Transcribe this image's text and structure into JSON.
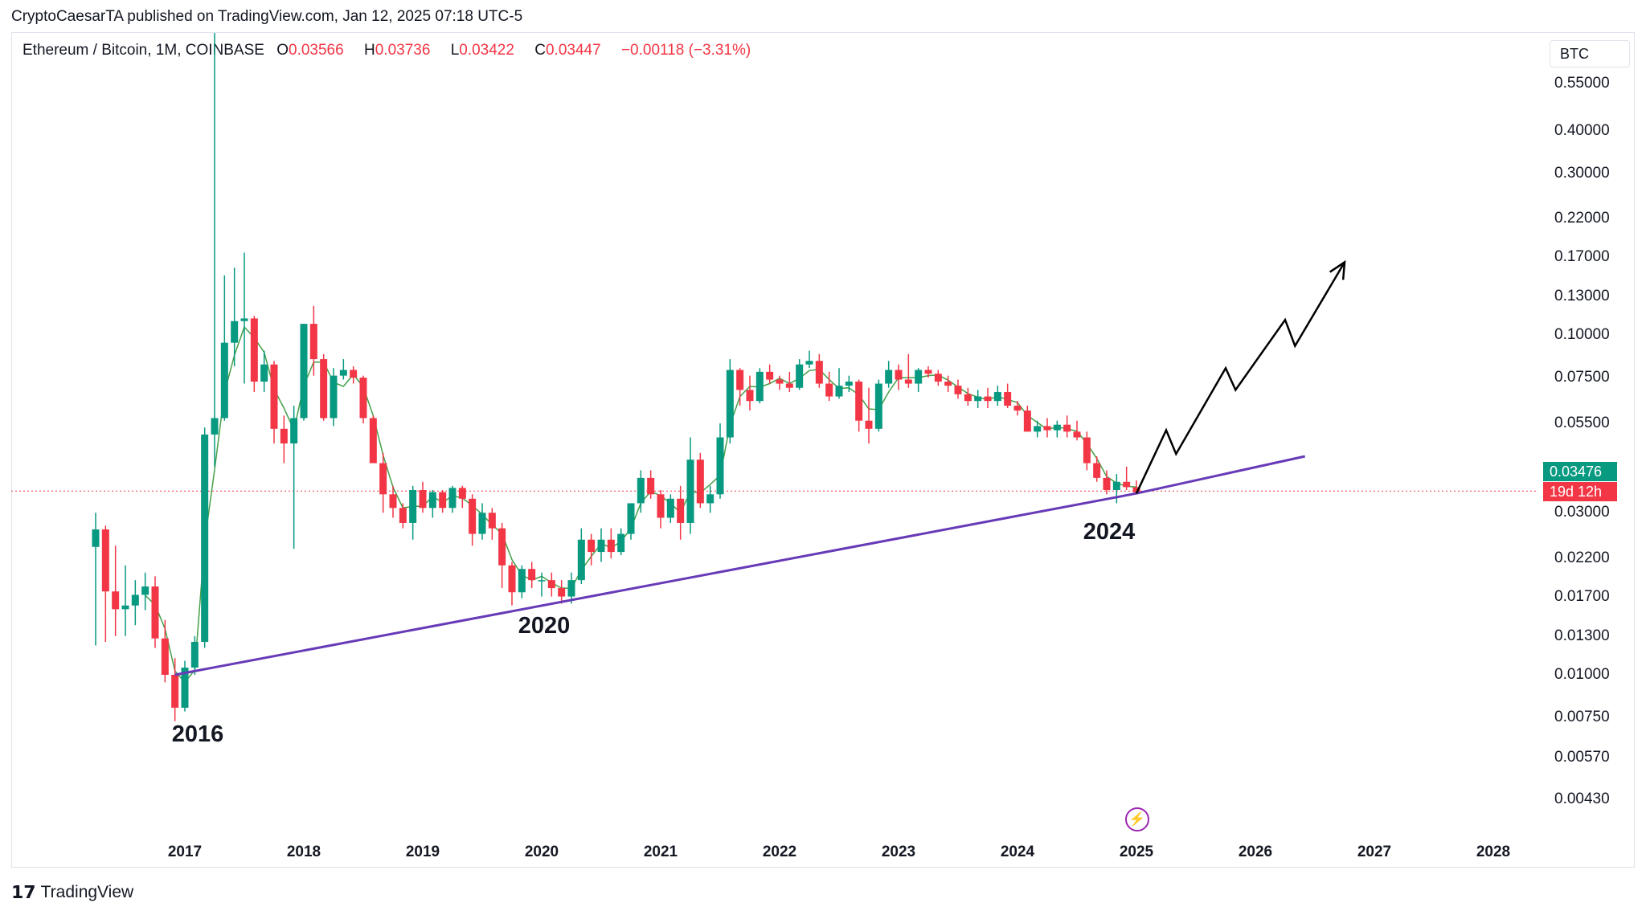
{
  "publisher_line": "CryptoCaesarTA published on TradingView.com, Jan 12, 2025 07:18 UTC-5",
  "legend": {
    "symbol": "Ethereum / Bitcoin, 1M, COINBASE",
    "o_label": "O",
    "o_value": "0.03566",
    "h_label": "H",
    "h_value": "0.03736",
    "l_label": "L",
    "l_value": "0.03422",
    "c_label": "C",
    "c_value": "0.03447",
    "change": "−0.00118 (−3.31%)"
  },
  "currency_button": "BTC",
  "last_price_label": "0.03476",
  "countdown_label": "19d 12h",
  "colors": {
    "up": "#089981",
    "down": "#f23645",
    "trendline": "#673ab7",
    "ma": "#43a047",
    "arrow": "#000000",
    "price_line": "#f23645"
  },
  "brand": "TradingView",
  "icons": {
    "logo": "tradingview-logo-icon",
    "event": "lightning-event-icon"
  },
  "chart_data": {
    "type": "candlestick",
    "scale": "log",
    "interval": "1M",
    "y_ticks": [
      "0.55000",
      "0.40000",
      "0.30000",
      "0.22000",
      "0.17000",
      "0.13000",
      "0.10000",
      "0.07500",
      "0.05500",
      "0.03000",
      "0.02200",
      "0.01700",
      "0.01300",
      "0.01000",
      "0.00750",
      "0.00570",
      "0.00430"
    ],
    "x_ticks": [
      "2017",
      "2018",
      "2019",
      "2020",
      "2021",
      "2022",
      "2023",
      "2024",
      "2025",
      "2026",
      "2027",
      "2028"
    ],
    "annotations": [
      "2016",
      "2020",
      "2024"
    ],
    "last_price": 0.03476,
    "candles": [
      {
        "t": "2016-04",
        "o": 0.0238,
        "h": 0.03,
        "l": 0.0122,
        "c": 0.0268
      },
      {
        "t": "2016-05",
        "o": 0.0268,
        "h": 0.0275,
        "l": 0.0125,
        "c": 0.0176
      },
      {
        "t": "2016-06",
        "o": 0.0176,
        "h": 0.024,
        "l": 0.013,
        "c": 0.0156
      },
      {
        "t": "2016-07",
        "o": 0.0156,
        "h": 0.021,
        "l": 0.013,
        "c": 0.016
      },
      {
        "t": "2016-08",
        "o": 0.016,
        "h": 0.019,
        "l": 0.014,
        "c": 0.0172
      },
      {
        "t": "2016-09",
        "o": 0.0172,
        "h": 0.02,
        "l": 0.0155,
        "c": 0.0182
      },
      {
        "t": "2016-10",
        "o": 0.0182,
        "h": 0.0195,
        "l": 0.012,
        "c": 0.0128
      },
      {
        "t": "2016-11",
        "o": 0.0128,
        "h": 0.0145,
        "l": 0.0095,
        "c": 0.01
      },
      {
        "t": "2016-12",
        "o": 0.01,
        "h": 0.0112,
        "l": 0.0073,
        "c": 0.008
      },
      {
        "t": "2017-01",
        "o": 0.008,
        "h": 0.011,
        "l": 0.0078,
        "c": 0.0105
      },
      {
        "t": "2017-02",
        "o": 0.0105,
        "h": 0.013,
        "l": 0.01,
        "c": 0.0125
      },
      {
        "t": "2017-03",
        "o": 0.0125,
        "h": 0.0535,
        "l": 0.012,
        "c": 0.051
      },
      {
        "t": "2017-04",
        "o": 0.051,
        "h": 1.9,
        "l": 0.041,
        "c": 0.057
      },
      {
        "t": "2017-05",
        "o": 0.057,
        "h": 0.15,
        "l": 0.056,
        "c": 0.095
      },
      {
        "t": "2017-06",
        "o": 0.095,
        "h": 0.158,
        "l": 0.081,
        "c": 0.11
      },
      {
        "t": "2017-07",
        "o": 0.11,
        "h": 0.175,
        "l": 0.072,
        "c": 0.112
      },
      {
        "t": "2017-08",
        "o": 0.112,
        "h": 0.114,
        "l": 0.068,
        "c": 0.073
      },
      {
        "t": "2017-09",
        "o": 0.073,
        "h": 0.09,
        "l": 0.068,
        "c": 0.082
      },
      {
        "t": "2017-10",
        "o": 0.082,
        "h": 0.084,
        "l": 0.048,
        "c": 0.053
      },
      {
        "t": "2017-11",
        "o": 0.053,
        "h": 0.058,
        "l": 0.042,
        "c": 0.048
      },
      {
        "t": "2017-12",
        "o": 0.048,
        "h": 0.062,
        "l": 0.0235,
        "c": 0.057
      },
      {
        "t": "2018-01",
        "o": 0.057,
        "h": 0.108,
        "l": 0.056,
        "c": 0.108
      },
      {
        "t": "2018-02",
        "o": 0.108,
        "h": 0.122,
        "l": 0.076,
        "c": 0.085
      },
      {
        "t": "2018-03",
        "o": 0.085,
        "h": 0.088,
        "l": 0.056,
        "c": 0.057
      },
      {
        "t": "2018-04",
        "o": 0.057,
        "h": 0.08,
        "l": 0.054,
        "c": 0.076
      },
      {
        "t": "2018-05",
        "o": 0.076,
        "h": 0.085,
        "l": 0.074,
        "c": 0.079
      },
      {
        "t": "2018-06",
        "o": 0.079,
        "h": 0.081,
        "l": 0.072,
        "c": 0.075
      },
      {
        "t": "2018-07",
        "o": 0.075,
        "h": 0.076,
        "l": 0.055,
        "c": 0.057
      },
      {
        "t": "2018-08",
        "o": 0.057,
        "h": 0.058,
        "l": 0.042,
        "c": 0.042
      },
      {
        "t": "2018-09",
        "o": 0.042,
        "h": 0.045,
        "l": 0.03,
        "c": 0.034
      },
      {
        "t": "2018-10",
        "o": 0.034,
        "h": 0.036,
        "l": 0.029,
        "c": 0.031
      },
      {
        "t": "2018-11",
        "o": 0.031,
        "h": 0.032,
        "l": 0.027,
        "c": 0.028
      },
      {
        "t": "2018-12",
        "o": 0.028,
        "h": 0.036,
        "l": 0.025,
        "c": 0.035
      },
      {
        "t": "2019-01",
        "o": 0.035,
        "h": 0.037,
        "l": 0.03,
        "c": 0.031
      },
      {
        "t": "2019-02",
        "o": 0.031,
        "h": 0.035,
        "l": 0.029,
        "c": 0.0345
      },
      {
        "t": "2019-03",
        "o": 0.0345,
        "h": 0.035,
        "l": 0.03,
        "c": 0.031
      },
      {
        "t": "2019-04",
        "o": 0.031,
        "h": 0.036,
        "l": 0.03,
        "c": 0.0355
      },
      {
        "t": "2019-05",
        "o": 0.0355,
        "h": 0.036,
        "l": 0.031,
        "c": 0.033
      },
      {
        "t": "2019-06",
        "o": 0.033,
        "h": 0.034,
        "l": 0.024,
        "c": 0.026
      },
      {
        "t": "2019-07",
        "o": 0.026,
        "h": 0.032,
        "l": 0.025,
        "c": 0.03
      },
      {
        "t": "2019-08",
        "o": 0.03,
        "h": 0.031,
        "l": 0.025,
        "c": 0.027
      },
      {
        "t": "2019-09",
        "o": 0.027,
        "h": 0.028,
        "l": 0.018,
        "c": 0.021
      },
      {
        "t": "2019-10",
        "o": 0.021,
        "h": 0.0215,
        "l": 0.016,
        "c": 0.0175
      },
      {
        "t": "2019-11",
        "o": 0.0175,
        "h": 0.021,
        "l": 0.0168,
        "c": 0.0205
      },
      {
        "t": "2019-12",
        "o": 0.0205,
        "h": 0.0215,
        "l": 0.018,
        "c": 0.019
      },
      {
        "t": "2020-01",
        "o": 0.019,
        "h": 0.02,
        "l": 0.017,
        "c": 0.019
      },
      {
        "t": "2020-02",
        "o": 0.019,
        "h": 0.02,
        "l": 0.017,
        "c": 0.018
      },
      {
        "t": "2020-03",
        "o": 0.018,
        "h": 0.019,
        "l": 0.0162,
        "c": 0.017
      },
      {
        "t": "2020-04",
        "o": 0.017,
        "h": 0.02,
        "l": 0.0162,
        "c": 0.019
      },
      {
        "t": "2020-05",
        "o": 0.019,
        "h": 0.027,
        "l": 0.0185,
        "c": 0.025
      },
      {
        "t": "2020-06",
        "o": 0.025,
        "h": 0.026,
        "l": 0.021,
        "c": 0.023
      },
      {
        "t": "2020-07",
        "o": 0.023,
        "h": 0.027,
        "l": 0.0215,
        "c": 0.025
      },
      {
        "t": "2020-08",
        "o": 0.025,
        "h": 0.027,
        "l": 0.022,
        "c": 0.023
      },
      {
        "t": "2020-09",
        "o": 0.023,
        "h": 0.027,
        "l": 0.0225,
        "c": 0.026
      },
      {
        "t": "2020-10",
        "o": 0.026,
        "h": 0.032,
        "l": 0.025,
        "c": 0.032
      },
      {
        "t": "2020-11",
        "o": 0.032,
        "h": 0.04,
        "l": 0.03,
        "c": 0.038
      },
      {
        "t": "2020-12",
        "o": 0.038,
        "h": 0.04,
        "l": 0.033,
        "c": 0.034
      },
      {
        "t": "2021-01",
        "o": 0.034,
        "h": 0.035,
        "l": 0.027,
        "c": 0.029
      },
      {
        "t": "2021-02",
        "o": 0.029,
        "h": 0.034,
        "l": 0.028,
        "c": 0.033
      },
      {
        "t": "2021-03",
        "o": 0.033,
        "h": 0.036,
        "l": 0.025,
        "c": 0.028
      },
      {
        "t": "2021-04",
        "o": 0.028,
        "h": 0.05,
        "l": 0.026,
        "c": 0.043
      },
      {
        "t": "2021-05",
        "o": 0.043,
        "h": 0.045,
        "l": 0.031,
        "c": 0.032
      },
      {
        "t": "2021-06",
        "o": 0.032,
        "h": 0.036,
        "l": 0.03,
        "c": 0.034
      },
      {
        "t": "2021-07",
        "o": 0.034,
        "h": 0.055,
        "l": 0.033,
        "c": 0.05
      },
      {
        "t": "2021-08",
        "o": 0.05,
        "h": 0.085,
        "l": 0.048,
        "c": 0.079
      },
      {
        "t": "2021-09",
        "o": 0.079,
        "h": 0.08,
        "l": 0.062,
        "c": 0.069
      },
      {
        "t": "2021-10",
        "o": 0.069,
        "h": 0.076,
        "l": 0.06,
        "c": 0.064
      },
      {
        "t": "2021-11",
        "o": 0.064,
        "h": 0.08,
        "l": 0.063,
        "c": 0.078
      },
      {
        "t": "2021-12",
        "o": 0.078,
        "h": 0.082,
        "l": 0.072,
        "c": 0.074
      },
      {
        "t": "2022-01",
        "o": 0.074,
        "h": 0.076,
        "l": 0.069,
        "c": 0.072
      },
      {
        "t": "2022-02",
        "o": 0.072,
        "h": 0.078,
        "l": 0.068,
        "c": 0.07
      },
      {
        "t": "2022-03",
        "o": 0.07,
        "h": 0.085,
        "l": 0.069,
        "c": 0.082
      },
      {
        "t": "2022-04",
        "o": 0.082,
        "h": 0.09,
        "l": 0.08,
        "c": 0.084
      },
      {
        "t": "2022-05",
        "o": 0.084,
        "h": 0.088,
        "l": 0.07,
        "c": 0.072
      },
      {
        "t": "2022-06",
        "o": 0.072,
        "h": 0.078,
        "l": 0.064,
        "c": 0.066
      },
      {
        "t": "2022-07",
        "o": 0.066,
        "h": 0.08,
        "l": 0.065,
        "c": 0.071
      },
      {
        "t": "2022-08",
        "o": 0.071,
        "h": 0.076,
        "l": 0.068,
        "c": 0.073
      },
      {
        "t": "2022-09",
        "o": 0.073,
        "h": 0.074,
        "l": 0.052,
        "c": 0.056
      },
      {
        "t": "2022-10",
        "o": 0.056,
        "h": 0.07,
        "l": 0.048,
        "c": 0.053
      },
      {
        "t": "2022-11",
        "o": 0.053,
        "h": 0.074,
        "l": 0.052,
        "c": 0.072
      },
      {
        "t": "2022-12",
        "o": 0.072,
        "h": 0.084,
        "l": 0.07,
        "c": 0.079
      },
      {
        "t": "2023-01",
        "o": 0.079,
        "h": 0.082,
        "l": 0.069,
        "c": 0.074
      },
      {
        "t": "2023-02",
        "o": 0.074,
        "h": 0.088,
        "l": 0.07,
        "c": 0.072
      },
      {
        "t": "2023-03",
        "o": 0.072,
        "h": 0.08,
        "l": 0.068,
        "c": 0.079
      },
      {
        "t": "2023-04",
        "o": 0.079,
        "h": 0.081,
        "l": 0.075,
        "c": 0.077
      },
      {
        "t": "2023-05",
        "o": 0.077,
        "h": 0.079,
        "l": 0.071,
        "c": 0.073
      },
      {
        "t": "2023-06",
        "o": 0.073,
        "h": 0.076,
        "l": 0.068,
        "c": 0.071
      },
      {
        "t": "2023-07",
        "o": 0.071,
        "h": 0.074,
        "l": 0.065,
        "c": 0.067
      },
      {
        "t": "2023-08",
        "o": 0.067,
        "h": 0.07,
        "l": 0.062,
        "c": 0.064
      },
      {
        "t": "2023-09",
        "o": 0.064,
        "h": 0.069,
        "l": 0.061,
        "c": 0.066
      },
      {
        "t": "2023-10",
        "o": 0.066,
        "h": 0.07,
        "l": 0.061,
        "c": 0.064
      },
      {
        "t": "2023-11",
        "o": 0.064,
        "h": 0.071,
        "l": 0.062,
        "c": 0.068
      },
      {
        "t": "2023-12",
        "o": 0.068,
        "h": 0.072,
        "l": 0.061,
        "c": 0.062
      },
      {
        "t": "2024-01",
        "o": 0.062,
        "h": 0.064,
        "l": 0.058,
        "c": 0.06
      },
      {
        "t": "2024-02",
        "o": 0.06,
        "h": 0.062,
        "l": 0.052,
        "c": 0.052
      },
      {
        "t": "2024-03",
        "o": 0.052,
        "h": 0.056,
        "l": 0.05,
        "c": 0.054
      },
      {
        "t": "2024-04",
        "o": 0.054,
        "h": 0.057,
        "l": 0.05,
        "c": 0.0525
      },
      {
        "t": "2024-05",
        "o": 0.0525,
        "h": 0.056,
        "l": 0.05,
        "c": 0.0545
      },
      {
        "t": "2024-06",
        "o": 0.0545,
        "h": 0.058,
        "l": 0.05,
        "c": 0.052
      },
      {
        "t": "2024-07",
        "o": 0.052,
        "h": 0.056,
        "l": 0.049,
        "c": 0.05
      },
      {
        "t": "2024-08",
        "o": 0.05,
        "h": 0.052,
        "l": 0.04,
        "c": 0.042
      },
      {
        "t": "2024-09",
        "o": 0.042,
        "h": 0.044,
        "l": 0.037,
        "c": 0.038
      },
      {
        "t": "2024-10",
        "o": 0.038,
        "h": 0.04,
        "l": 0.034,
        "c": 0.035
      },
      {
        "t": "2024-11",
        "o": 0.035,
        "h": 0.039,
        "l": 0.032,
        "c": 0.037
      },
      {
        "t": "2024-12",
        "o": 0.037,
        "h": 0.041,
        "l": 0.035,
        "c": 0.0357
      },
      {
        "t": "2025-01",
        "o": 0.03566,
        "h": 0.03736,
        "l": 0.03422,
        "c": 0.03447
      }
    ],
    "trendline": [
      {
        "t": "2016-12",
        "v": 0.01
      },
      {
        "t": "2025-01",
        "v": 0.0342
      },
      {
        "t": "2026-06",
        "v": 0.044
      }
    ],
    "projection": [
      {
        "t": "2025-01",
        "v": 0.0342
      },
      {
        "t": "2025-04",
        "v": 0.0525
      },
      {
        "t": "2025-05",
        "v": 0.0447
      },
      {
        "t": "2025-10",
        "v": 0.08
      },
      {
        "t": "2025-11",
        "v": 0.069
      },
      {
        "t": "2026-04",
        "v": 0.111
      },
      {
        "t": "2026-05",
        "v": 0.093
      },
      {
        "t": "2026-10",
        "v": 0.164
      }
    ]
  }
}
